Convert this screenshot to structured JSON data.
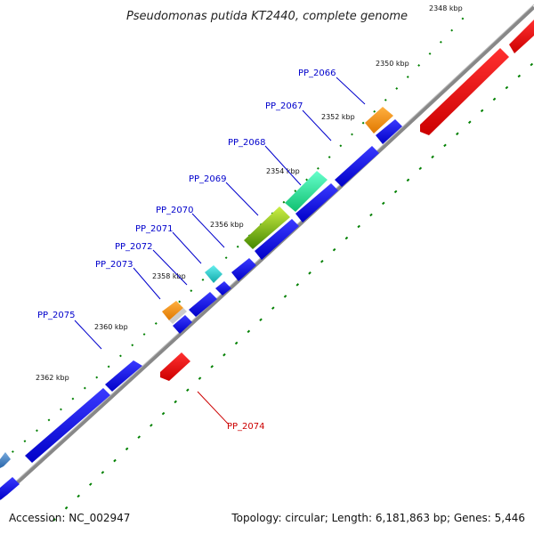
{
  "title": "Pseudomonas putida KT2440, complete genome",
  "footer": {
    "accession": "Accession: NC_002947",
    "summary": "Topology: circular; Length: 6,181,863 bp; Genes: 5,446"
  },
  "ticks": [
    "2348 kbp",
    "2350 kbp",
    "2352 kbp",
    "2354 kbp",
    "2356 kbp",
    "2358 kbp",
    "2360 kbp",
    "2362 kbp"
  ],
  "gene_labels": [
    {
      "text": "PP_2066",
      "color": "#0000cc"
    },
    {
      "text": "PP_2067",
      "color": "#0000cc"
    },
    {
      "text": "PP_2068",
      "color": "#0000cc"
    },
    {
      "text": "PP_2069",
      "color": "#0000cc"
    },
    {
      "text": "PP_2070",
      "color": "#0000cc"
    },
    {
      "text": "PP_2071",
      "color": "#0000cc"
    },
    {
      "text": "PP_2072",
      "color": "#0000cc"
    },
    {
      "text": "PP_2073",
      "color": "#0000cc"
    },
    {
      "text": "PP_2075",
      "color": "#0000cc"
    },
    {
      "text": "PP_2074",
      "color": "#cc0000"
    }
  ],
  "colors": {
    "backbone": "#8c8c8c",
    "forward_gene": "#0000ee",
    "reverse_gene": "#ee0000",
    "dotted_track": "#008000",
    "feature_orange": "#f08c00",
    "feature_green": "#33dd99",
    "feature_olive": "#88bb22",
    "feature_cyan": "#33cccc",
    "feature_steel": "#4a88c8"
  }
}
